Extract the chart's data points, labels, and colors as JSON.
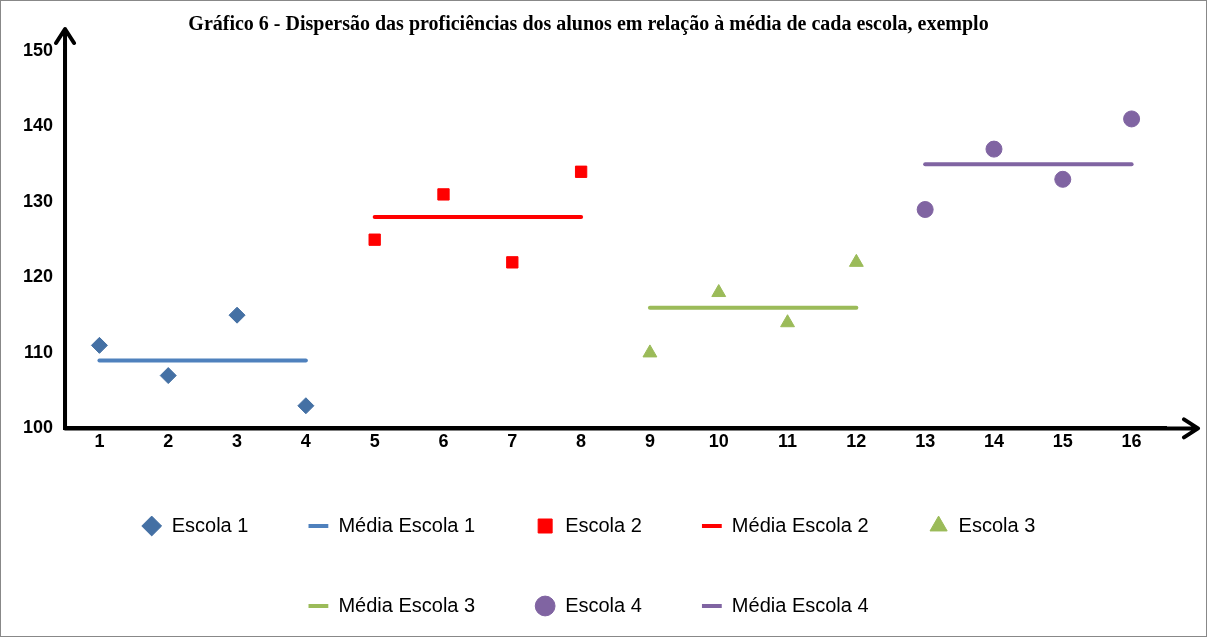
{
  "chart_data": {
    "type": "scatter",
    "title": "Gráfico 6 - Dispersão das proficiências dos alunos em relação à média de cada escola, exemplo",
    "xlim": [
      0.5,
      16.5
    ],
    "xticks": [
      1,
      2,
      3,
      4,
      5,
      6,
      7,
      8,
      9,
      10,
      11,
      12,
      13,
      14,
      15,
      16
    ],
    "ylim": [
      100,
      150
    ],
    "yticks": [
      100,
      110,
      120,
      130,
      140,
      150
    ],
    "grid": false,
    "legend": "bottom",
    "series": [
      {
        "name": "Escola 1",
        "marker": "diamond",
        "color": "#4470a4",
        "x": [
          1,
          2,
          3,
          4
        ],
        "values": [
          111,
          107,
          115,
          103
        ]
      },
      {
        "name": "Média Escola 1",
        "type": "line",
        "marker": "none",
        "color": "#4f81bd",
        "x": [
          1,
          4
        ],
        "values": [
          109,
          109
        ]
      },
      {
        "name": "Escola 2",
        "marker": "square",
        "color": "#ff0000",
        "x": [
          5,
          6,
          7,
          8
        ],
        "values": [
          125,
          131,
          122,
          134
        ]
      },
      {
        "name": "Média Escola 2",
        "type": "line",
        "marker": "none",
        "color": "#ff0000",
        "x": [
          5,
          8
        ],
        "values": [
          128,
          128
        ]
      },
      {
        "name": "Escola 3",
        "marker": "triangle",
        "color": "#9bbb59",
        "x": [
          9,
          10,
          11,
          12
        ],
        "values": [
          110,
          118,
          114,
          122
        ]
      },
      {
        "name": "Média Escola 3",
        "type": "line",
        "marker": "none",
        "color": "#9bbb59",
        "x": [
          9,
          12
        ],
        "values": [
          116,
          116
        ]
      },
      {
        "name": "Escola 4",
        "marker": "circle",
        "color": "#8064a2",
        "x": [
          13,
          14,
          15,
          16
        ],
        "values": [
          129,
          137,
          133,
          141
        ]
      },
      {
        "name": "Média Escola 4",
        "type": "line",
        "marker": "none",
        "color": "#8064a2",
        "x": [
          13,
          16
        ],
        "values": [
          135,
          135
        ]
      }
    ]
  }
}
